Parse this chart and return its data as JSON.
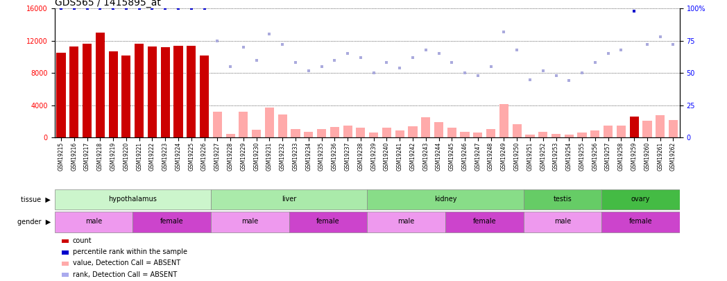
{
  "title": "GDS565 / 1415895_at",
  "samples": [
    "GSM19215",
    "GSM19216",
    "GSM19217",
    "GSM19218",
    "GSM19219",
    "GSM19220",
    "GSM19221",
    "GSM19222",
    "GSM19223",
    "GSM19224",
    "GSM19225",
    "GSM19226",
    "GSM19227",
    "GSM19228",
    "GSM19229",
    "GSM19230",
    "GSM19231",
    "GSM19232",
    "GSM19233",
    "GSM19234",
    "GSM19235",
    "GSM19236",
    "GSM19237",
    "GSM19238",
    "GSM19239",
    "GSM19240",
    "GSM19241",
    "GSM19242",
    "GSM19243",
    "GSM19244",
    "GSM19245",
    "GSM19246",
    "GSM19247",
    "GSM19248",
    "GSM19249",
    "GSM19250",
    "GSM19251",
    "GSM19252",
    "GSM19253",
    "GSM19254",
    "GSM19255",
    "GSM19256",
    "GSM19257",
    "GSM19258",
    "GSM19259",
    "GSM19260",
    "GSM19261",
    "GSM19262"
  ],
  "bar_values": [
    10500,
    11300,
    11600,
    13000,
    10700,
    10200,
    11600,
    11300,
    11200,
    11400,
    11400,
    10200,
    3200,
    500,
    3200,
    1000,
    3700,
    2900,
    1100,
    700,
    1100,
    1300,
    1500,
    1200,
    600,
    1200,
    900,
    1400,
    2500,
    1900,
    1200,
    700,
    600,
    1100,
    4200,
    1700,
    400,
    700,
    500,
    400,
    600,
    900,
    1500,
    1500,
    2600,
    2100,
    2800,
    2200
  ],
  "bar_colors_present": "#cc0000",
  "bar_colors_absent": "#ffaaaa",
  "absent_flags": [
    false,
    false,
    false,
    false,
    false,
    false,
    false,
    false,
    false,
    false,
    false,
    false,
    true,
    true,
    true,
    true,
    true,
    true,
    true,
    true,
    true,
    true,
    true,
    true,
    true,
    true,
    true,
    true,
    true,
    true,
    true,
    true,
    true,
    true,
    true,
    true,
    true,
    true,
    true,
    true,
    true,
    true,
    true,
    true,
    false,
    true,
    true,
    true
  ],
  "percentile_ranks": [
    100,
    100,
    100,
    100,
    100,
    100,
    100,
    100,
    100,
    100,
    100,
    100,
    75,
    55,
    70,
    60,
    80,
    72,
    58,
    52,
    55,
    60,
    65,
    62,
    50,
    58,
    54,
    62,
    68,
    65,
    58,
    50,
    48,
    55,
    82,
    68,
    45,
    52,
    48,
    44,
    50,
    58,
    65,
    68,
    98,
    72,
    78,
    72
  ],
  "rank_absent_flags": [
    false,
    false,
    false,
    false,
    false,
    false,
    false,
    false,
    false,
    false,
    false,
    false,
    true,
    true,
    true,
    true,
    true,
    true,
    true,
    true,
    true,
    true,
    true,
    true,
    true,
    true,
    true,
    true,
    true,
    true,
    true,
    true,
    true,
    true,
    true,
    true,
    true,
    true,
    true,
    true,
    true,
    true,
    true,
    true,
    false,
    true,
    true,
    true
  ],
  "ylim_left": [
    0,
    16000
  ],
  "ylim_right": [
    0,
    100
  ],
  "yticks_left": [
    0,
    4000,
    8000,
    12000,
    16000
  ],
  "yticks_right": [
    0,
    25,
    50,
    75,
    100
  ],
  "tissue_groups": [
    {
      "label": "hypothalamus",
      "start": 0,
      "end": 11,
      "color": "#ccf5cc"
    },
    {
      "label": "liver",
      "start": 12,
      "end": 23,
      "color": "#aaeaaa"
    },
    {
      "label": "kidney",
      "start": 24,
      "end": 35,
      "color": "#88dd88"
    },
    {
      "label": "testis",
      "start": 36,
      "end": 41,
      "color": "#66cc66"
    },
    {
      "label": "ovary",
      "start": 42,
      "end": 47,
      "color": "#44bb44"
    }
  ],
  "gender_groups": [
    {
      "label": "male",
      "start": 0,
      "end": 5,
      "color": "#ee99ee"
    },
    {
      "label": "female",
      "start": 6,
      "end": 11,
      "color": "#cc44cc"
    },
    {
      "label": "male",
      "start": 12,
      "end": 17,
      "color": "#ee99ee"
    },
    {
      "label": "female",
      "start": 18,
      "end": 23,
      "color": "#cc44cc"
    },
    {
      "label": "male",
      "start": 24,
      "end": 29,
      "color": "#ee99ee"
    },
    {
      "label": "female",
      "start": 30,
      "end": 35,
      "color": "#cc44cc"
    },
    {
      "label": "male",
      "start": 36,
      "end": 41,
      "color": "#ee99ee"
    },
    {
      "label": "female",
      "start": 42,
      "end": 47,
      "color": "#cc44cc"
    }
  ],
  "legend_items": [
    {
      "label": "count",
      "color": "#cc0000"
    },
    {
      "label": "percentile rank within the sample",
      "color": "#0000cc"
    },
    {
      "label": "value, Detection Call = ABSENT",
      "color": "#ffaaaa"
    },
    {
      "label": "rank, Detection Call = ABSENT",
      "color": "#aaaaee"
    }
  ],
  "bar_width": 0.7,
  "tick_fontsize": 6,
  "title_fontsize": 10
}
